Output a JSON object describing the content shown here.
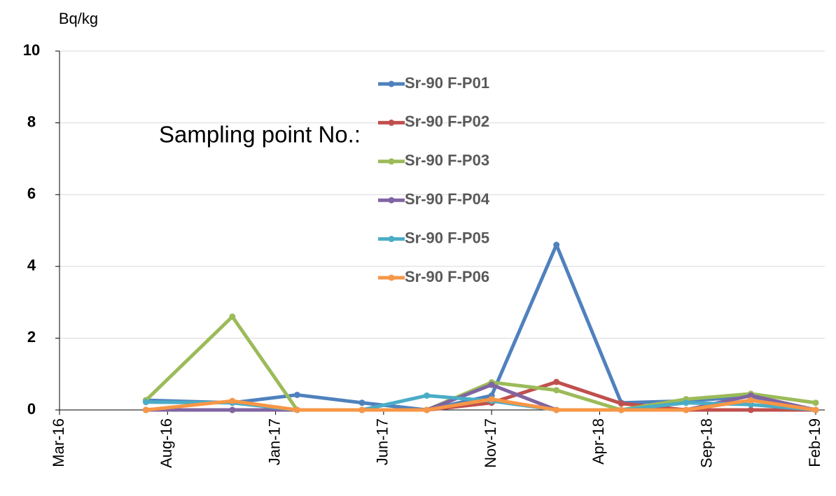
{
  "chart_data": {
    "type": "line",
    "y_label": "Bq/kg",
    "legend_title": "Sampling point No.:",
    "x": [
      "2016-07",
      "2016-11",
      "2017-02",
      "2017-05",
      "2017-08",
      "2017-11",
      "2018-02",
      "2018-05",
      "2018-08",
      "2018-11",
      "2019-02"
    ],
    "xlim": [
      "2016-03",
      "2019-02"
    ],
    "xticks": [
      {
        "value": "2016-03",
        "label": "Mar-16"
      },
      {
        "value": "2016-08",
        "label": "Aug-16"
      },
      {
        "value": "2017-01",
        "label": "Jan-17"
      },
      {
        "value": "2017-06",
        "label": "Jun-17"
      },
      {
        "value": "2017-11",
        "label": "Nov-17"
      },
      {
        "value": "2018-04",
        "label": "Apr-18"
      },
      {
        "value": "2018-09",
        "label": "Sep-18"
      },
      {
        "value": "2019-02",
        "label": "Feb-19"
      }
    ],
    "ylim": [
      0,
      10
    ],
    "yticks": [
      0,
      2,
      4,
      6,
      8,
      10
    ],
    "grid": true,
    "series": [
      {
        "name": "Sr-90 F-P01",
        "color": "#4f81bd",
        "values": [
          0.27,
          0.2,
          0.42,
          0.2,
          0,
          0.4,
          4.6,
          0.2,
          0.25,
          0.38,
          0
        ]
      },
      {
        "name": "Sr-90 F-P02",
        "color": "#c0504d",
        "values": [
          0,
          0,
          0,
          0,
          0,
          0.2,
          0.78,
          0.18,
          0,
          0,
          0
        ]
      },
      {
        "name": "Sr-90 F-P03",
        "color": "#9bbb59",
        "values": [
          0.27,
          2.6,
          0,
          0,
          0,
          0.77,
          0.55,
          0,
          0.3,
          0.45,
          0.2
        ]
      },
      {
        "name": "Sr-90 F-P04",
        "color": "#8064a2",
        "values": [
          0,
          0,
          0,
          0,
          0,
          0.7,
          0,
          0,
          0,
          0.4,
          0
        ]
      },
      {
        "name": "Sr-90 F-P05",
        "color": "#4bacc6",
        "values": [
          0.22,
          0.2,
          0,
          0,
          0.4,
          0.25,
          0,
          0,
          0.2,
          0.15,
          0
        ]
      },
      {
        "name": "Sr-90 F-P06",
        "color": "#f79646",
        "values": [
          0,
          0.25,
          0,
          0,
          0,
          0.3,
          0,
          0,
          0,
          0.27,
          0
        ]
      }
    ]
  }
}
